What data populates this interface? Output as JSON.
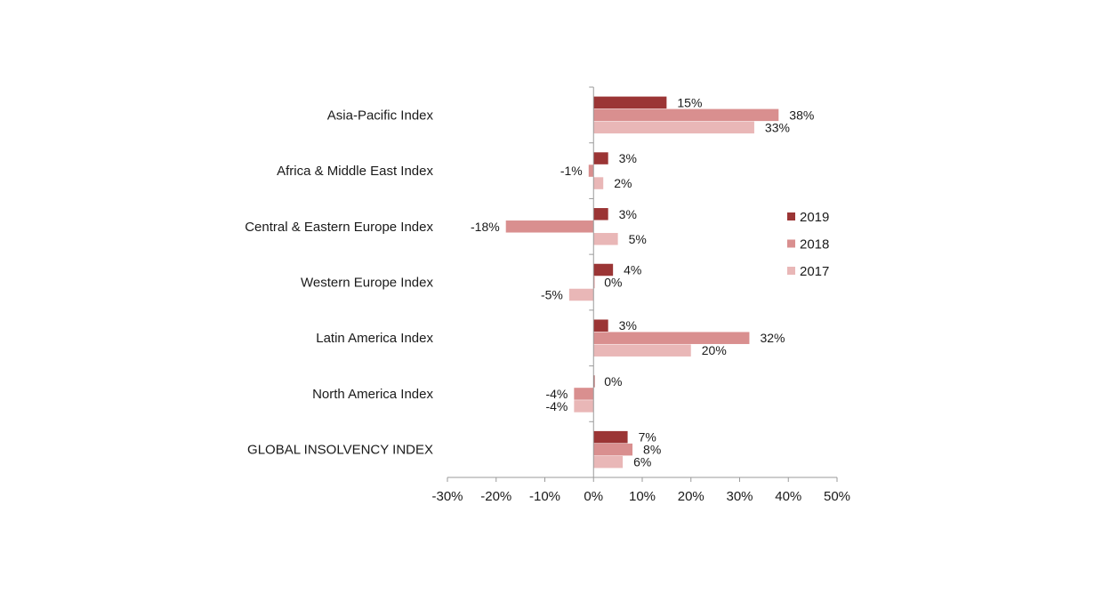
{
  "chart_data": {
    "type": "bar",
    "orientation": "horizontal",
    "categories": [
      "Asia-Pacific Index",
      "Africa & Middle East Index",
      "Central & Eastern Europe Index",
      "Western Europe Index",
      "Latin America Index",
      "North America Index",
      "GLOBAL INSOLVENCY INDEX"
    ],
    "series": [
      {
        "name": "2019",
        "color": "#9b3535",
        "values": [
          15,
          3,
          3,
          4,
          3,
          0,
          7
        ]
      },
      {
        "name": "2018",
        "color": "#d98f8f",
        "values": [
          38,
          -1,
          -18,
          0,
          32,
          -4,
          8
        ]
      },
      {
        "name": "2017",
        "color": "#e9b7b7",
        "values": [
          33,
          2,
          5,
          -5,
          20,
          -4,
          6
        ]
      }
    ],
    "data_labels": [
      [
        "15%",
        "38%",
        "33%"
      ],
      [
        "3%",
        "-1%",
        "2%"
      ],
      [
        "3%",
        "-18%",
        "5%"
      ],
      [
        "4%",
        "0%",
        "-5%"
      ],
      [
        "3%",
        "32%",
        "20%"
      ],
      [
        "0%",
        "-4%",
        "-4%"
      ],
      [
        "7%",
        "8%",
        "6%"
      ]
    ],
    "x_ticks": [
      "-30%",
      "-20%",
      "-10%",
      "0%",
      "10%",
      "20%",
      "30%",
      "40%",
      "50%"
    ],
    "xlim": [
      -30,
      50
    ],
    "unit": "%",
    "legend_position": "right",
    "grid": false
  }
}
